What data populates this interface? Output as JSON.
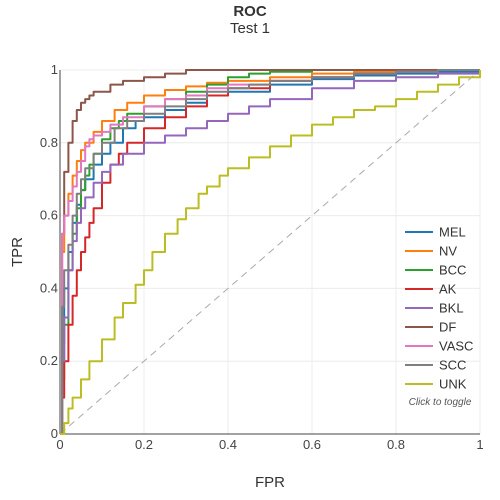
{
  "chart_data": {
    "type": "line",
    "title": "ROC",
    "subtitle": "Test 1",
    "xlabel": "FPR",
    "ylabel": "TPR",
    "xlim": [
      0,
      1
    ],
    "ylim": [
      0,
      1
    ],
    "x_ticks": [
      "0",
      "0.2",
      "0.4",
      "0.6",
      "0.8",
      "1"
    ],
    "y_ticks": [
      "0",
      "0.2",
      "0.4",
      "0.6",
      "0.8",
      "1"
    ],
    "grid": true,
    "legend_position": "right",
    "legend_hint": "Click to toggle",
    "reference_line": {
      "style": "dashed",
      "x": [
        0,
        1
      ],
      "y": [
        0,
        1
      ]
    },
    "series": [
      {
        "name": "MEL",
        "color": "#1f77b4",
        "x": [
          0,
          0.005,
          0.01,
          0.02,
          0.03,
          0.04,
          0.05,
          0.06,
          0.08,
          0.1,
          0.12,
          0.15,
          0.18,
          0.2,
          0.25,
          0.3,
          0.35,
          0.4,
          0.5,
          0.6,
          0.7,
          0.8,
          0.9,
          1
        ],
        "y": [
          0,
          0.25,
          0.4,
          0.5,
          0.58,
          0.63,
          0.67,
          0.7,
          0.74,
          0.77,
          0.8,
          0.84,
          0.86,
          0.87,
          0.89,
          0.91,
          0.93,
          0.94,
          0.96,
          0.975,
          0.985,
          0.99,
          0.995,
          1
        ]
      },
      {
        "name": "NV",
        "color": "#ff7f0e",
        "x": [
          0,
          0.005,
          0.01,
          0.02,
          0.03,
          0.04,
          0.05,
          0.06,
          0.08,
          0.1,
          0.13,
          0.16,
          0.2,
          0.25,
          0.3,
          0.35,
          0.4,
          0.5,
          0.6,
          0.7,
          0.8,
          0.9,
          1
        ],
        "y": [
          0,
          0.5,
          0.6,
          0.66,
          0.71,
          0.75,
          0.78,
          0.8,
          0.83,
          0.86,
          0.89,
          0.91,
          0.93,
          0.945,
          0.955,
          0.965,
          0.97,
          0.98,
          0.99,
          0.995,
          0.998,
          1,
          1
        ]
      },
      {
        "name": "BCC",
        "color": "#2ca02c",
        "x": [
          0,
          0.005,
          0.01,
          0.02,
          0.03,
          0.04,
          0.05,
          0.06,
          0.07,
          0.08,
          0.1,
          0.12,
          0.14,
          0.16,
          0.2,
          0.25,
          0.3,
          0.35,
          0.4,
          0.45,
          0.5,
          0.6,
          0.7,
          0.8,
          0.9,
          1
        ],
        "y": [
          0,
          0.15,
          0.3,
          0.45,
          0.55,
          0.62,
          0.67,
          0.71,
          0.74,
          0.77,
          0.81,
          0.84,
          0.86,
          0.88,
          0.9,
          0.92,
          0.94,
          0.96,
          0.98,
          0.99,
          0.995,
          1,
          1,
          1,
          1,
          1
        ]
      },
      {
        "name": "AK",
        "color": "#d62728",
        "x": [
          0,
          0.005,
          0.01,
          0.02,
          0.03,
          0.04,
          0.05,
          0.06,
          0.07,
          0.08,
          0.1,
          0.12,
          0.14,
          0.16,
          0.2,
          0.25,
          0.3,
          0.35,
          0.4,
          0.5,
          0.6,
          0.7,
          0.8,
          0.9,
          1
        ],
        "y": [
          0,
          0.1,
          0.2,
          0.3,
          0.38,
          0.45,
          0.5,
          0.54,
          0.58,
          0.62,
          0.69,
          0.74,
          0.77,
          0.8,
          0.84,
          0.87,
          0.9,
          0.93,
          0.95,
          0.97,
          0.98,
          0.99,
          0.995,
          1,
          1
        ]
      },
      {
        "name": "BKL",
        "color": "#9467bd",
        "x": [
          0,
          0.005,
          0.01,
          0.02,
          0.03,
          0.04,
          0.05,
          0.06,
          0.08,
          0.1,
          0.12,
          0.15,
          0.2,
          0.25,
          0.3,
          0.35,
          0.4,
          0.45,
          0.5,
          0.6,
          0.7,
          0.8,
          0.9,
          1
        ],
        "y": [
          0,
          0.2,
          0.32,
          0.45,
          0.53,
          0.58,
          0.62,
          0.65,
          0.69,
          0.72,
          0.74,
          0.77,
          0.8,
          0.82,
          0.84,
          0.86,
          0.88,
          0.9,
          0.92,
          0.95,
          0.97,
          0.98,
          0.99,
          1
        ]
      },
      {
        "name": "DF",
        "color": "#8c564b",
        "x": [
          0,
          0.005,
          0.01,
          0.02,
          0.03,
          0.04,
          0.05,
          0.06,
          0.07,
          0.08,
          0.1,
          0.12,
          0.15,
          0.2,
          0.25,
          0.3,
          0.4,
          0.5,
          0.6,
          0.7,
          0.8,
          0.9,
          1
        ],
        "y": [
          0,
          0.55,
          0.72,
          0.8,
          0.86,
          0.89,
          0.91,
          0.92,
          0.93,
          0.94,
          0.94,
          0.96,
          0.97,
          0.98,
          0.99,
          1,
          1,
          1,
          1,
          1,
          1,
          1,
          1
        ]
      },
      {
        "name": "VASC",
        "color": "#e377c2",
        "x": [
          0,
          0.005,
          0.01,
          0.02,
          0.03,
          0.04,
          0.05,
          0.06,
          0.07,
          0.08,
          0.1,
          0.12,
          0.15,
          0.2,
          0.25,
          0.3,
          0.35,
          0.4,
          0.5,
          0.6,
          0.7,
          0.8,
          0.9,
          1
        ],
        "y": [
          0,
          0.55,
          0.6,
          0.64,
          0.68,
          0.72,
          0.75,
          0.79,
          0.81,
          0.82,
          0.83,
          0.85,
          0.87,
          0.9,
          0.92,
          0.93,
          0.95,
          0.96,
          0.97,
          0.98,
          0.99,
          0.995,
          1,
          1
        ]
      },
      {
        "name": "SCC",
        "color": "#7f7f7f",
        "x": [
          0,
          0.005,
          0.01,
          0.02,
          0.03,
          0.04,
          0.05,
          0.06,
          0.08,
          0.1,
          0.13,
          0.16,
          0.2,
          0.25,
          0.3,
          0.35,
          0.4,
          0.45,
          0.5,
          0.6,
          0.7,
          0.8,
          0.9,
          1
        ],
        "y": [
          0,
          0.35,
          0.45,
          0.52,
          0.6,
          0.66,
          0.7,
          0.73,
          0.77,
          0.8,
          0.84,
          0.86,
          0.88,
          0.9,
          0.92,
          0.94,
          0.95,
          0.96,
          0.97,
          0.98,
          0.99,
          0.995,
          1,
          1
        ]
      },
      {
        "name": "UNK",
        "color": "#bcbd22",
        "x": [
          0,
          0.01,
          0.02,
          0.03,
          0.05,
          0.07,
          0.1,
          0.13,
          0.15,
          0.18,
          0.2,
          0.22,
          0.25,
          0.28,
          0.3,
          0.33,
          0.35,
          0.38,
          0.4,
          0.45,
          0.5,
          0.55,
          0.6,
          0.65,
          0.7,
          0.75,
          0.8,
          0.85,
          0.9,
          0.95,
          1
        ],
        "y": [
          0,
          0.03,
          0.07,
          0.1,
          0.15,
          0.2,
          0.26,
          0.32,
          0.36,
          0.41,
          0.45,
          0.5,
          0.55,
          0.59,
          0.62,
          0.66,
          0.68,
          0.71,
          0.73,
          0.76,
          0.79,
          0.82,
          0.85,
          0.87,
          0.89,
          0.9,
          0.92,
          0.94,
          0.96,
          0.98,
          1
        ]
      }
    ]
  }
}
